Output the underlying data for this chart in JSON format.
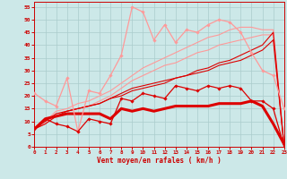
{
  "x": [
    0,
    1,
    2,
    3,
    4,
    5,
    6,
    7,
    8,
    9,
    10,
    11,
    12,
    13,
    14,
    15,
    16,
    17,
    18,
    19,
    20,
    21,
    22,
    23
  ],
  "background_color": "#cce8e8",
  "grid_color": "#aacccc",
  "xlabel": "Vent moyen/en rafales ( km/h )",
  "ylabel_ticks": [
    0,
    5,
    10,
    15,
    20,
    25,
    30,
    35,
    40,
    45,
    50,
    55
  ],
  "line_dark_diamond": {
    "y": [
      7,
      11,
      9,
      8,
      6,
      11,
      10,
      9,
      19,
      18,
      21,
      20,
      19,
      24,
      23,
      22,
      24,
      23,
      24,
      23,
      18,
      18,
      15,
      0
    ],
    "color": "#dd0000",
    "lw": 0.9,
    "marker": "D",
    "ms": 1.8,
    "zorder": 6
  },
  "line_dark_thick": {
    "y": [
      7,
      11,
      12,
      13,
      13,
      13,
      13,
      11,
      15,
      14,
      15,
      14,
      15,
      16,
      16,
      16,
      16,
      17,
      17,
      17,
      18,
      16,
      9,
      1
    ],
    "color": "#dd0000",
    "lw": 2.2,
    "marker": null,
    "ms": 0,
    "zorder": 4
  },
  "line_dark_upper": {
    "y": [
      7,
      10,
      13,
      14,
      15,
      16,
      17,
      19,
      21,
      23,
      24,
      25,
      26,
      27,
      28,
      30,
      31,
      33,
      34,
      36,
      38,
      40,
      45,
      0
    ],
    "color": "#dd0000",
    "lw": 0.8,
    "marker": null,
    "ms": 0,
    "zorder": 3
  },
  "line_dark_lower": {
    "y": [
      7,
      9,
      12,
      14,
      15,
      16,
      17,
      19,
      20,
      22,
      23,
      24,
      25,
      27,
      28,
      29,
      30,
      32,
      33,
      34,
      36,
      38,
      42,
      0
    ],
    "color": "#dd0000",
    "lw": 0.8,
    "marker": null,
    "ms": 0,
    "zorder": 3
  },
  "line_pink_diamond": {
    "y": [
      21,
      18,
      16,
      27,
      6,
      22,
      21,
      28,
      36,
      55,
      53,
      42,
      48,
      41,
      46,
      45,
      48,
      50,
      49,
      45,
      37,
      30,
      28,
      15
    ],
    "color": "#ff9999",
    "lw": 0.9,
    "marker": "D",
    "ms": 1.8,
    "zorder": 6
  },
  "line_pink_upper": {
    "y": [
      7,
      10,
      14,
      15,
      17,
      18,
      20,
      22,
      25,
      28,
      31,
      33,
      35,
      37,
      39,
      41,
      43,
      44,
      46,
      47,
      47,
      46,
      46,
      0
    ],
    "color": "#ff9999",
    "lw": 0.8,
    "marker": null,
    "ms": 0,
    "zorder": 2
  },
  "line_pink_lower": {
    "y": [
      7,
      9,
      13,
      14,
      15,
      16,
      18,
      20,
      23,
      26,
      28,
      30,
      32,
      33,
      35,
      37,
      38,
      40,
      41,
      42,
      43,
      44,
      44,
      0
    ],
    "color": "#ff9999",
    "lw": 0.8,
    "marker": null,
    "ms": 0,
    "zorder": 2
  },
  "ylim": [
    0,
    57
  ],
  "xlim": [
    0,
    23
  ]
}
